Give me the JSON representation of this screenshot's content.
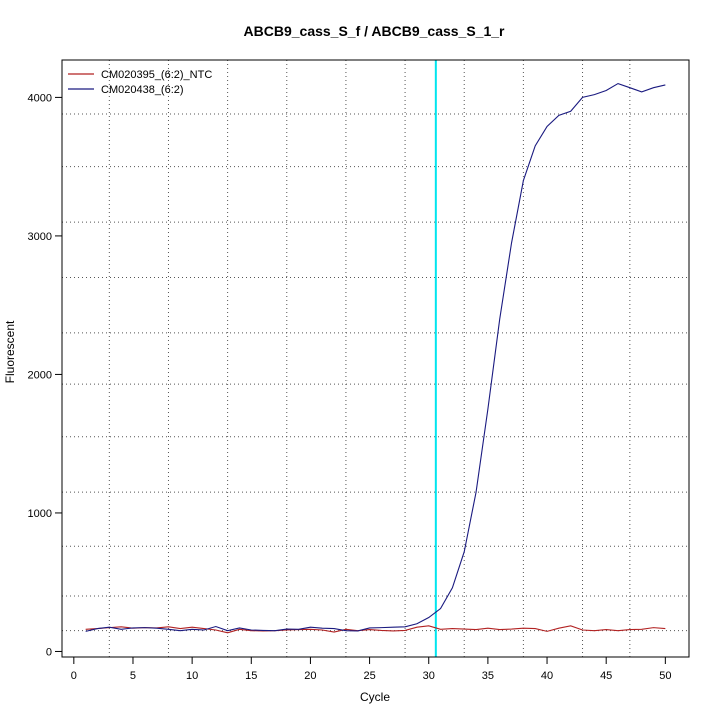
{
  "chart_data": {
    "type": "line",
    "title": "ABCB9_cass_S_f / ABCB9_cass_S_1_r",
    "xlabel": "Cycle",
    "ylabel": "Fluorescent",
    "xlim": [
      -1,
      52
    ],
    "ylim": [
      -40,
      4270
    ],
    "x_ticks": [
      0,
      5,
      10,
      15,
      20,
      25,
      30,
      35,
      40,
      45,
      50
    ],
    "y_ticks": [
      0,
      1000,
      2000,
      3000,
      4000
    ],
    "x_grid": [
      3,
      8,
      13,
      18,
      23,
      28,
      33,
      38,
      43,
      47
    ],
    "y_grid": [
      150,
      400,
      760,
      1150,
      1550,
      1930,
      2300,
      2700,
      3100,
      3500,
      3880
    ],
    "grid": true,
    "legend_position": "top-left",
    "threshold_cycle": 30.6,
    "threshold_color": "#00e5ee",
    "x": [
      1,
      2,
      3,
      4,
      5,
      6,
      7,
      8,
      9,
      10,
      11,
      12,
      13,
      14,
      15,
      16,
      17,
      18,
      19,
      20,
      21,
      22,
      23,
      24,
      25,
      26,
      27,
      28,
      29,
      30,
      31,
      32,
      33,
      34,
      35,
      36,
      37,
      38,
      39,
      40,
      41,
      42,
      43,
      44,
      45,
      46,
      47,
      48,
      49,
      50
    ],
    "series": [
      {
        "name": "CM020395_(6:2)_NTC",
        "color": "#b22222",
        "values": [
          160,
          165,
          172,
          178,
          168,
          172,
          170,
          178,
          165,
          175,
          165,
          155,
          135,
          160,
          150,
          148,
          150,
          155,
          158,
          160,
          155,
          140,
          160,
          150,
          158,
          152,
          148,
          152,
          175,
          185,
          160,
          165,
          162,
          158,
          168,
          158,
          162,
          168,
          165,
          145,
          168,
          185,
          155,
          150,
          158,
          150,
          158,
          160,
          172,
          165
        ]
      },
      {
        "name": "CM020438_(6:2)",
        "color": "#1a1a80",
        "values": [
          145,
          165,
          175,
          160,
          170,
          172,
          168,
          160,
          150,
          160,
          155,
          180,
          150,
          170,
          155,
          152,
          150,
          162,
          160,
          175,
          168,
          165,
          150,
          148,
          170,
          172,
          175,
          178,
          200,
          245,
          310,
          460,
          720,
          1150,
          1750,
          2400,
          2950,
          3400,
          3650,
          3790,
          3870,
          3900,
          4000,
          4020,
          4050,
          4100,
          4070,
          4040,
          4070,
          4090
        ]
      }
    ]
  }
}
